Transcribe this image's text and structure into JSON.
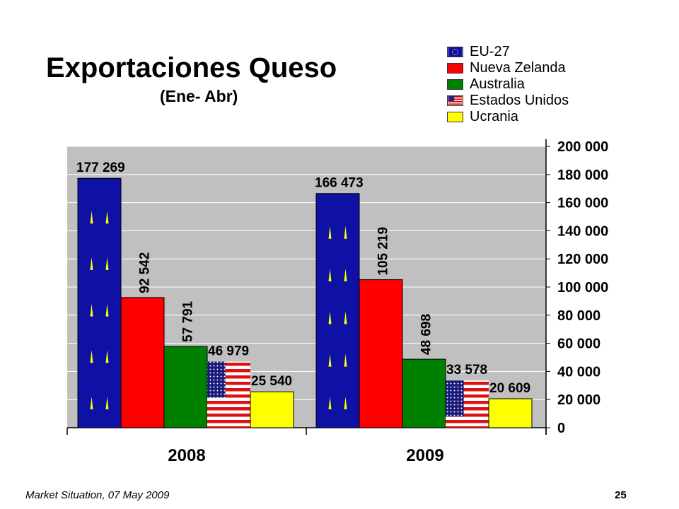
{
  "slide": {
    "footer": "Market Situation, 07 May 2009",
    "page_number": "25"
  },
  "colors": {
    "EU-27": "#0f11a5",
    "Nueva Zelanda": "#ff0000",
    "Australia": "#008000",
    "Estados Unidos": "flag-us",
    "Ucrania": "#ffff00",
    "plot_background": "#c0c0c0",
    "grid": "#ffffff"
  },
  "legend_icons": [
    "eu-flag-icon",
    "",
    "",
    "us-flag-icon",
    ""
  ],
  "chart_data": {
    "type": "bar",
    "title": "Exportaciones Queso",
    "subtitle": "(Ene- Abr)",
    "categories": [
      "2008",
      "2009"
    ],
    "series": [
      {
        "name": "EU-27",
        "values": [
          177269,
          166473
        ],
        "labels": [
          "177 269",
          "166 473"
        ]
      },
      {
        "name": "Nueva Zelanda",
        "values": [
          92542,
          105219
        ],
        "labels": [
          "92 542",
          "105 219"
        ]
      },
      {
        "name": "Australia",
        "values": [
          57791,
          48698
        ],
        "labels": [
          "57 791",
          "48 698"
        ]
      },
      {
        "name": "Estados Unidos",
        "values": [
          46979,
          33578
        ],
        "labels": [
          "46 979",
          "33 578"
        ]
      },
      {
        "name": "Ucrania",
        "values": [
          25540,
          20609
        ],
        "labels": [
          "25 540",
          "20 609"
        ]
      }
    ],
    "ylim": [
      0,
      200000
    ],
    "yticks": [
      "0",
      "20 000",
      "40 000",
      "60 000",
      "80 000",
      "100 000",
      "120 000",
      "140 000",
      "160 000",
      "180 000",
      "200 000"
    ],
    "y_axis_side": "right",
    "grid": true,
    "legend_position": "top-right"
  }
}
